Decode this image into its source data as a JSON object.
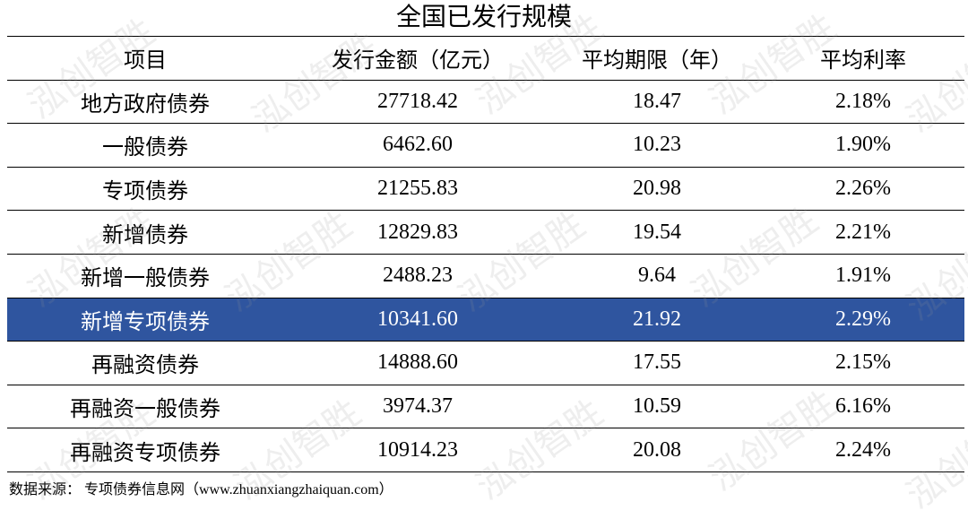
{
  "header": {
    "title": "全国已发行规模"
  },
  "table": {
    "columns": [
      "项目",
      "发行金额（亿元）",
      "平均期限（年）",
      "平均利率"
    ],
    "rows": [
      [
        "地方政府债券",
        "27718.42",
        "18.47",
        "2.18%"
      ],
      [
        "一般债券",
        "6462.60",
        "10.23",
        "1.90%"
      ],
      [
        "专项债券",
        "21255.83",
        "20.98",
        "2.26%"
      ],
      [
        "新增债券",
        "12829.83",
        "19.54",
        "2.21%"
      ],
      [
        "新增一般债券",
        "2488.23",
        "9.64",
        "1.91%"
      ],
      [
        "新增专项债券",
        "10341.60",
        "21.92",
        "2.29%"
      ],
      [
        "再融资债券",
        "14888.60",
        "17.55",
        "2.15%"
      ],
      [
        "再融资一般债券",
        "3974.37",
        "10.59",
        "6.16%"
      ],
      [
        "再融资专项债券",
        "10914.23",
        "20.08",
        "2.24%"
      ]
    ],
    "highlighted_row": 5
  },
  "footer": {
    "source": "数据来源：  专项债券信息网（www.zhuanxiangzhaiquan.com）"
  },
  "watermark": "泓创智胜"
}
